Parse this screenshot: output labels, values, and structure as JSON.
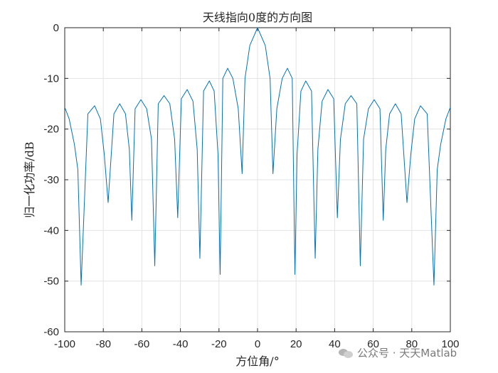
{
  "chart_data": {
    "type": "line",
    "title": "天线指向0度的方向图",
    "xlabel": "方位角/°",
    "ylabel": "归一化功率/dB",
    "xlim": [
      -100,
      100
    ],
    "ylim": [
      -60,
      0
    ],
    "xticks": [
      "-100",
      "-80",
      "-60",
      "-40",
      "-20",
      "0",
      "20",
      "40",
      "60",
      "80",
      "100"
    ],
    "yticks": [
      "0",
      "-10",
      "-20",
      "-30",
      "-40",
      "-50",
      "-60"
    ],
    "grid": true,
    "series": [
      {
        "color": "#0072BD",
        "x": [
          -100,
          -97.7,
          -95.0,
          -93.2,
          -91.5,
          -88.0,
          -84.5,
          -81.5,
          -79.5,
          -77.5,
          -74.5,
          -71.5,
          -68.5,
          -66.5,
          -65.2,
          -63.5,
          -60.5,
          -57.5,
          -55.0,
          -53.3,
          -51.5,
          -48.5,
          -45.5,
          -43.0,
          -41.4,
          -39.5,
          -36.5,
          -33.5,
          -31.3,
          -29.9,
          -28.0,
          -25.0,
          -22.5,
          -20.5,
          -19.4,
          -18.0,
          -15.5,
          -12.8,
          -10.0,
          -8.0,
          -6.5,
          -4.0,
          0,
          4.0,
          6.5,
          8.0,
          10.0,
          12.8,
          15.5,
          18.0,
          19.4,
          20.5,
          22.5,
          25.0,
          28.0,
          29.9,
          31.3,
          33.5,
          36.5,
          39.5,
          41.4,
          43.0,
          45.5,
          48.5,
          51.5,
          53.3,
          55.0,
          57.5,
          60.5,
          63.5,
          65.2,
          66.5,
          68.5,
          71.5,
          74.5,
          77.5,
          79.5,
          81.5,
          84.5,
          88.0,
          91.5,
          93.2,
          95.0,
          97.7,
          100
        ],
        "y": [
          -15.7,
          -18.0,
          -23.0,
          -28.0,
          -50.8,
          -17.0,
          -15.4,
          -18.0,
          -25.0,
          -34.5,
          -17.0,
          -15.0,
          -17.0,
          -24.0,
          -38.0,
          -16.0,
          -14.2,
          -16.0,
          -22.0,
          -47.0,
          -15.0,
          -13.4,
          -15.0,
          -22.0,
          -37.5,
          -14.0,
          -12.2,
          -14.5,
          -24.0,
          -45.5,
          -12.5,
          -10.5,
          -12.5,
          -25.0,
          -48.7,
          -10.0,
          -8.0,
          -10.0,
          -16.0,
          -28.8,
          -10.0,
          -3.5,
          0,
          -3.5,
          -10.0,
          -28.8,
          -16.0,
          -10.0,
          -8.0,
          -10.0,
          -48.7,
          -25.0,
          -12.5,
          -10.5,
          -12.5,
          -45.5,
          -24.0,
          -14.5,
          -12.2,
          -14.0,
          -37.5,
          -22.0,
          -15.0,
          -13.4,
          -15.0,
          -47.0,
          -22.0,
          -16.0,
          -14.2,
          -16.0,
          -38.0,
          -24.0,
          -17.0,
          -15.0,
          -17.0,
          -34.5,
          -25.0,
          -18.0,
          -15.4,
          -17.0,
          -50.8,
          -28.0,
          -23.0,
          -18.0,
          -15.7
        ]
      }
    ]
  },
  "watermark": {
    "icon": "wechat-icon",
    "text": "公众号 · 天天Matlab"
  }
}
